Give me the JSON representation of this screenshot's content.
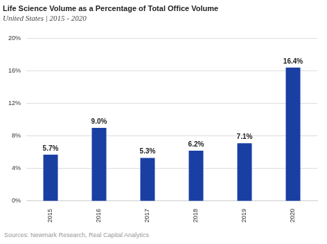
{
  "chart_data": {
    "type": "bar",
    "title": "Life Science Volume as a Percentage of Total Office Volume",
    "subtitle": "United States | 2015 - 2020",
    "source": "Sources: Newmark Research, Real Capital Analytics",
    "categories": [
      "2015",
      "2016",
      "2017",
      "2018",
      "2019",
      "2020"
    ],
    "values": [
      5.7,
      9.0,
      5.3,
      6.2,
      7.1,
      16.4
    ],
    "value_labels": [
      "5.7%",
      "9.0%",
      "5.3%",
      "6.2%",
      "7.1%",
      "16.4%"
    ],
    "color": "#1a3fa3",
    "ylim": [
      0,
      20
    ],
    "yticks": [
      {
        "value": 0,
        "label": "0%"
      },
      {
        "value": 4,
        "label": "4%"
      },
      {
        "value": 8,
        "label": "8%"
      },
      {
        "value": 12,
        "label": "12%"
      },
      {
        "value": 16,
        "label": "16%"
      },
      {
        "value": 20,
        "label": "20%"
      }
    ],
    "grid": true,
    "data_labels": true
  }
}
